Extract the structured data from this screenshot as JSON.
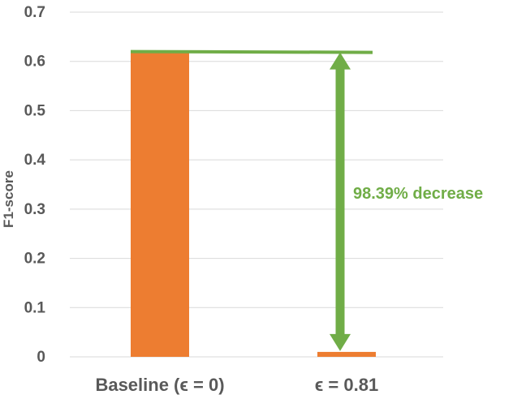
{
  "chart_data": {
    "type": "bar",
    "categories": [
      "Baseline (ϵ = 0)",
      "ϵ = 0.81"
    ],
    "values": [
      0.62,
      0.01
    ],
    "ylabel": "F1-score",
    "xlabel": "",
    "ylim": [
      0,
      0.7
    ],
    "yticks": [
      "0",
      "0.1",
      "0.2",
      "0.3",
      "0.4",
      "0.5",
      "0.6",
      "0.7"
    ],
    "grid": true,
    "bar_color": "#ED7D31",
    "annotation": {
      "text": "98.39% decrease",
      "from_value": 0.62,
      "to_value": 0.01,
      "color": "#70AD47"
    }
  }
}
